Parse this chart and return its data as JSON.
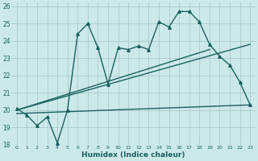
{
  "xlabel": "Humidex (Indice chaleur)",
  "bg_color": "#cce9e9",
  "grid_color": "#a8cccc",
  "line_color": "#1a6060",
  "xlim": [
    -0.5,
    23.5
  ],
  "ylim": [
    18,
    26.2
  ],
  "xtick_labels": [
    "0",
    "1",
    "2",
    "3",
    "4",
    "5",
    "6",
    "7",
    "8",
    "9",
    "10",
    "11",
    "12",
    "13",
    "14",
    "15",
    "16",
    "17",
    "18",
    "19",
    "20",
    "21",
    "22",
    "23"
  ],
  "xtick_pos": [
    0,
    1,
    2,
    3,
    4,
    5,
    6,
    7,
    8,
    9,
    10,
    11,
    12,
    13,
    14,
    15,
    16,
    17,
    18,
    19,
    20,
    21,
    22,
    23
  ],
  "ytick_pos": [
    18,
    19,
    20,
    21,
    22,
    23,
    24,
    25,
    26
  ],
  "ytick_labels": [
    "18",
    "19",
    "20",
    "21",
    "22",
    "23",
    "24",
    "25",
    "26"
  ],
  "line1_x": [
    0,
    1,
    2,
    3,
    4,
    5,
    6,
    7,
    8,
    9,
    10,
    11,
    12,
    13,
    14,
    15,
    16,
    17,
    18,
    19,
    20,
    21,
    22,
    23
  ],
  "line1_y": [
    20.1,
    19.7,
    19.1,
    19.6,
    18.1,
    20.0,
    24.4,
    25.0,
    23.6,
    21.5,
    23.6,
    23.5,
    23.7,
    23.5,
    25.1,
    24.8,
    25.7,
    25.7,
    25.1,
    23.8,
    23.1,
    22.6,
    21.6,
    20.3
  ],
  "line2_x": [
    0,
    23
  ],
  "line2_y": [
    20.0,
    23.8
  ],
  "line3_x": [
    0,
    23
  ],
  "line3_y": [
    19.8,
    20.3
  ],
  "line4_x": [
    0,
    19
  ],
  "line4_y": [
    20.0,
    23.5
  ],
  "markersize": 2.5,
  "linewidth": 1.0
}
